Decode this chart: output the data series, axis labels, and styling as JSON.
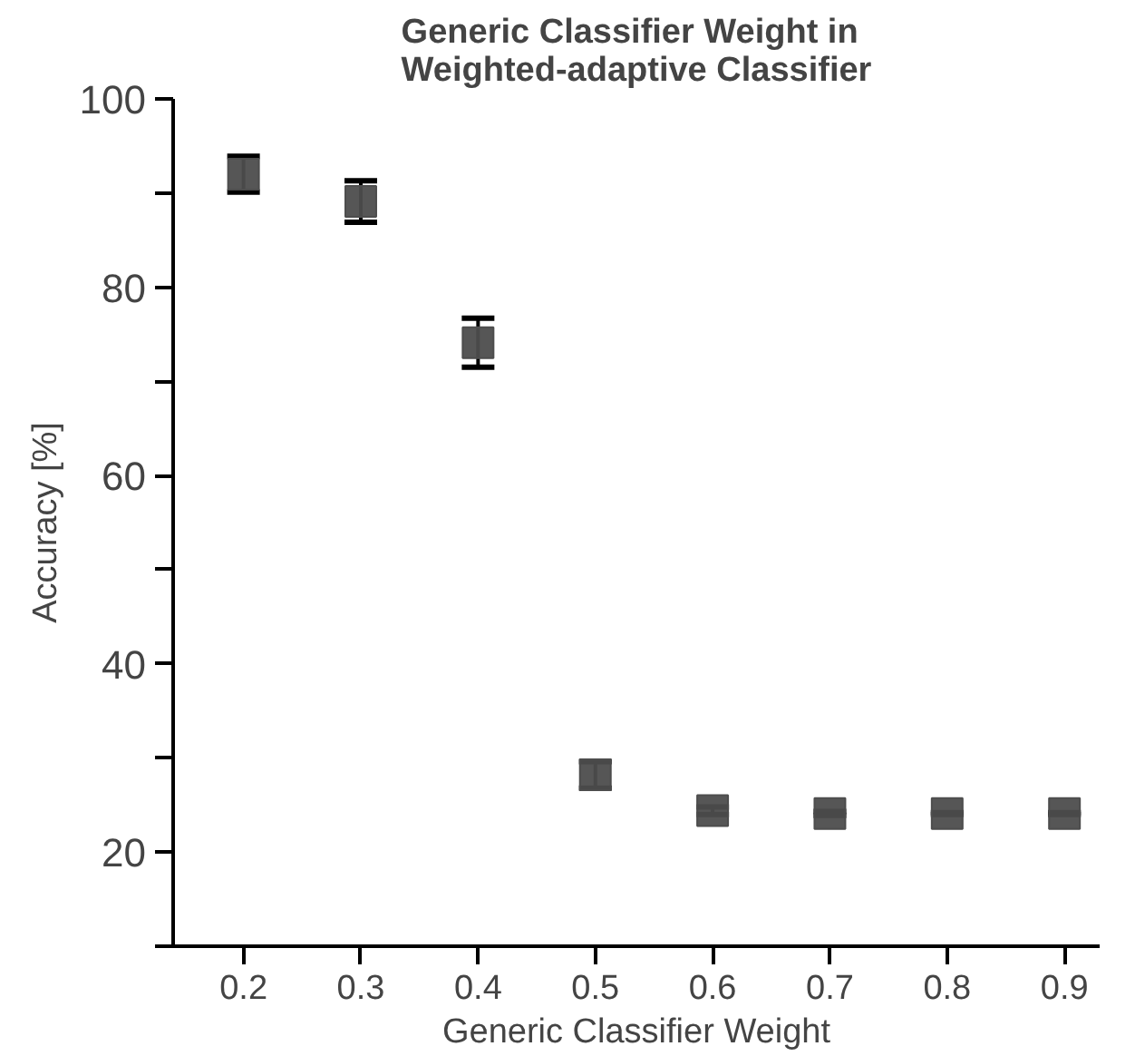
{
  "chart_data": {
    "type": "scatter",
    "title": "Generic Classifier Weight in\nWeighted-adaptive Classifier",
    "xlabel": "Generic Classifier Weight",
    "ylabel": "Accuracy [%]",
    "x": [
      0.2,
      0.3,
      0.4,
      0.5,
      0.6,
      0.7,
      0.8,
      0.9
    ],
    "values": [
      92,
      89.1,
      74.1,
      28.2,
      24.4,
      24.1,
      24.1,
      24.1
    ],
    "errors": [
      1.9,
      2.2,
      2.6,
      1.4,
      0.4,
      0.2,
      0.1,
      0.1
    ],
    "color": "#4d4d4d",
    "marker": "square",
    "grid": false,
    "xlim": [
      0.14,
      0.93
    ],
    "ylim": [
      10,
      100
    ],
    "xticks": [
      0.2,
      0.3,
      0.4,
      0.5,
      0.6,
      0.7,
      0.8,
      0.9
    ],
    "yticks": [
      {
        "value": 10,
        "label": null
      },
      20,
      {
        "value": 30,
        "label": null
      },
      40,
      {
        "value": 50,
        "label": null
      },
      60,
      {
        "value": 70,
        "label": null
      },
      80,
      {
        "value": 90,
        "label": null
      },
      100
    ]
  }
}
